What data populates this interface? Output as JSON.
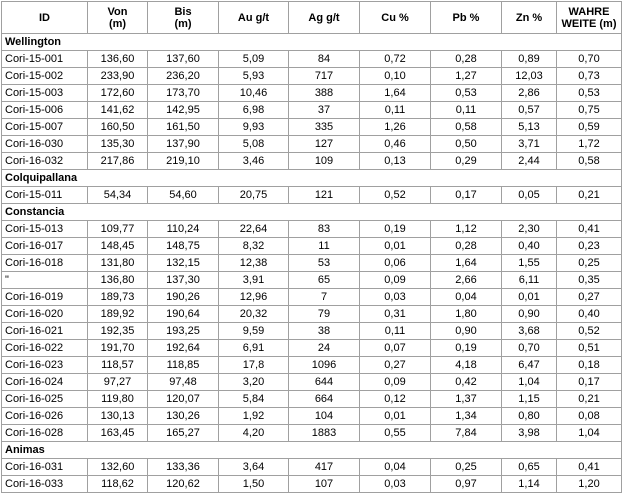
{
  "table": {
    "header": [
      "ID",
      "Von\n(m)",
      "Bis\n(m)",
      "Au g/t",
      "Ag g/t",
      "Cu %",
      "Pb %",
      "Zn %",
      "WAHRE\nWEITE (m)"
    ],
    "sections": [
      {
        "name": "Wellington",
        "rows": [
          [
            "Cori-15-001",
            "136,60",
            "137,60",
            "5,09",
            "84",
            "0,72",
            "0,28",
            "0,89",
            "0,70"
          ],
          [
            "Cori-15-002",
            "233,90",
            "236,20",
            "5,93",
            "717",
            "0,10",
            "1,27",
            "12,03",
            "0,73"
          ],
          [
            "Cori-15-003",
            "172,60",
            "173,70",
            "10,46",
            "388",
            "1,64",
            "0,53",
            "2,86",
            "0,53"
          ],
          [
            "Cori-15-006",
            "141,62",
            "142,95",
            "6,98",
            "37",
            "0,11",
            "0,11",
            "0,57",
            "0,75"
          ],
          [
            "Cori-15-007",
            "160,50",
            "161,50",
            "9,93",
            "335",
            "1,26",
            "0,58",
            "5,13",
            "0,59"
          ],
          [
            "Cori-16-030",
            "135,30",
            "137,90",
            "5,08",
            "127",
            "0,46",
            "0,50",
            "3,71",
            "1,72"
          ],
          [
            "Cori-16-032",
            "217,86",
            "219,10",
            "3,46",
            "109",
            "0,13",
            "0,29",
            "2,44",
            "0,58"
          ]
        ]
      },
      {
        "name": "Colquipallana",
        "rows": [
          [
            "Cori-15-011",
            "54,34",
            "54,60",
            "20,75",
            "121",
            "0,52",
            "0,17",
            "0,05",
            "0,21"
          ]
        ]
      },
      {
        "name": "Constancia",
        "rows": [
          [
            "Cori-15-013",
            "109,77",
            "110,24",
            "22,64",
            "83",
            "0,19",
            "1,12",
            "2,30",
            "0,41"
          ],
          [
            "Cori-16-017",
            "148,45",
            "148,75",
            "8,32",
            "11",
            "0,01",
            "0,28",
            "0,40",
            "0,23"
          ],
          [
            "Cori-16-018",
            "131,80",
            "132,15",
            "12,38",
            "53",
            "0,06",
            "1,64",
            "1,55",
            "0,25"
          ],
          [
            "\"",
            "136,80",
            "137,30",
            "3,91",
            "65",
            "0,09",
            "2,66",
            "6,11",
            "0,35"
          ],
          [
            "Cori-16-019",
            "189,73",
            "190,26",
            "12,96",
            "7",
            "0,03",
            "0,04",
            "0,01",
            "0,27"
          ],
          [
            "Cori-16-020",
            "189,92",
            "190,64",
            "20,32",
            "79",
            "0,31",
            "1,80",
            "0,90",
            "0,40"
          ],
          [
            "Cori-16-021",
            "192,35",
            "193,25",
            "9,59",
            "38",
            "0,11",
            "0,90",
            "3,68",
            "0,52"
          ],
          [
            "Cori-16-022",
            "191,70",
            "192,64",
            "6,91",
            "24",
            "0,07",
            "0,19",
            "0,70",
            "0,51"
          ],
          [
            "Cori-16-023",
            "118,57",
            "118,85",
            "17,8",
            "1096",
            "0,27",
            "4,18",
            "6,47",
            "0,18"
          ],
          [
            "Cori-16-024",
            "97,27",
            "97,48",
            "3,20",
            "644",
            "0,09",
            "0,42",
            "1,04",
            "0,17"
          ],
          [
            "Cori-16-025",
            "119,80",
            "120,07",
            "5,84",
            "664",
            "0,12",
            "1,37",
            "1,15",
            "0,21"
          ],
          [
            "Cori-16-026",
            "130,13",
            "130,26",
            "1,92",
            "104",
            "0,01",
            "1,34",
            "0,80",
            "0,08"
          ],
          [
            "Cori-16-028",
            "163,45",
            "165,27",
            "4,20",
            "1883",
            "0,55",
            "7,84",
            "3,98",
            "1,04"
          ]
        ]
      },
      {
        "name": "Animas",
        "rows": [
          [
            "Cori-16-031",
            "132,60",
            "133,36",
            "3,64",
            "417",
            "0,04",
            "0,25",
            "0,65",
            "0,41"
          ],
          [
            "Cori-16-033",
            "118,62",
            "120,62",
            "1,50",
            "107",
            "0,03",
            "0,97",
            "1,14",
            "1,20"
          ]
        ]
      }
    ]
  }
}
